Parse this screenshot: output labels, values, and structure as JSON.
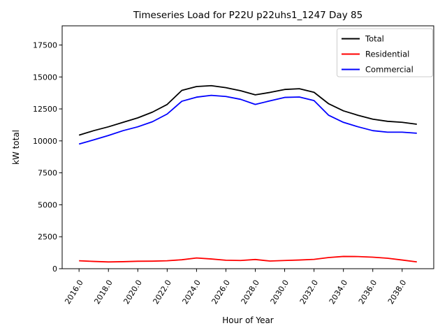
{
  "figure": {
    "title": "Timeseries Load for P22U p22uhs1_1247  Day 85",
    "xlabel": "Hour of Year",
    "ylabel": "kW total",
    "background_color": "#ffffff",
    "spine_color": "#000000"
  },
  "legend": {
    "position": "upper right",
    "border_color": "#cccccc",
    "items": [
      {
        "label": "Total",
        "color": "#000000"
      },
      {
        "label": "Residential",
        "color": "#ff0000"
      },
      {
        "label": "Commercial",
        "color": "#0000ff"
      }
    ]
  },
  "chart_data": {
    "type": "line",
    "title": "Timeseries Load for P22U p22uhs1_1247  Day 85",
    "xlabel": "Hour of Year",
    "ylabel": "kW total",
    "xlim": [
      2014.85,
      2040.15
    ],
    "ylim": [
      0,
      19000
    ],
    "grid": false,
    "legend_position": "upper right",
    "x_tick_values": [
      2016,
      2018,
      2020,
      2022,
      2024,
      2026,
      2028,
      2030,
      2032,
      2034,
      2036,
      2038
    ],
    "x_tick_labels": [
      "2016.0",
      "2018.0",
      "2020.0",
      "2022.0",
      "2024.0",
      "2026.0",
      "2028.0",
      "2030.0",
      "2032.0",
      "2034.0",
      "2036.0",
      "2038.0"
    ],
    "y_tick_values": [
      0,
      2500,
      5000,
      7500,
      10000,
      12500,
      15000,
      17500
    ],
    "y_tick_labels": [
      "0",
      "2500",
      "5000",
      "7500",
      "10000",
      "12500",
      "15000",
      "17500"
    ],
    "x": [
      2016,
      2017,
      2018,
      2019,
      2020,
      2021,
      2022,
      2023,
      2024,
      2025,
      2026,
      2027,
      2028,
      2029,
      2030,
      2031,
      2032,
      2033,
      2034,
      2035,
      2036,
      2037,
      2038,
      2039
    ],
    "series": [
      {
        "name": "Total",
        "color": "#000000",
        "values": [
          10450,
          10800,
          11100,
          11450,
          11800,
          12250,
          12850,
          13950,
          14250,
          14320,
          14160,
          13920,
          13600,
          13790,
          14020,
          14080,
          13800,
          12900,
          12350,
          12000,
          11700,
          11530,
          11450,
          11300
        ]
      },
      {
        "name": "Residential",
        "color": "#ff0000",
        "values": [
          620,
          570,
          530,
          550,
          585,
          590,
          620,
          700,
          840,
          760,
          660,
          640,
          720,
          600,
          640,
          680,
          730,
          875,
          960,
          950,
          900,
          820,
          680,
          530
        ]
      },
      {
        "name": "Commercial",
        "color": "#0000ff",
        "values": [
          9750,
          10080,
          10420,
          10800,
          11100,
          11500,
          12100,
          13100,
          13420,
          13560,
          13470,
          13250,
          12850,
          13130,
          13400,
          13430,
          13150,
          12000,
          11450,
          11100,
          10800,
          10680,
          10680,
          10600
        ]
      }
    ]
  }
}
